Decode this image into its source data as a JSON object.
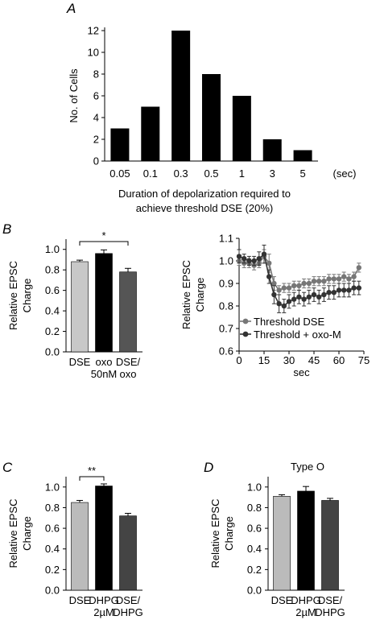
{
  "chart_data": [
    {
      "panel": "A",
      "type": "bar",
      "categories": [
        "0.05",
        "0.1",
        "0.3",
        "0.5",
        "1",
        "3",
        "5"
      ],
      "unit": "(sec)",
      "values": [
        3,
        5,
        12,
        8,
        6,
        2,
        1
      ],
      "ylabel": "No. of Cells",
      "xlabel_lines": [
        "Duration of depolarization required to",
        "achieve threshold DSE (20%)"
      ],
      "ylim": [
        0,
        12
      ],
      "yticks": [
        0,
        2,
        4,
        6,
        8,
        10,
        12
      ],
      "colors": [
        "#000000"
      ]
    },
    {
      "panel": "B",
      "type": "bar",
      "category_lines": [
        [
          "DSE"
        ],
        [
          "oxo",
          "50nM"
        ],
        [
          "DSE/",
          "oxo"
        ]
      ],
      "values": [
        0.88,
        0.96,
        0.78
      ],
      "errors": [
        0.015,
        0.035,
        0.035
      ],
      "colors": [
        "#c8c8c8",
        "#000000",
        "#555555"
      ],
      "ylabel_lines": [
        "Relative EPSC",
        "Charge"
      ],
      "ylim": [
        0,
        1.1
      ],
      "yticks": [
        "0.0",
        "0.2",
        "0.4",
        "0.6",
        "0.8",
        "1.0"
      ],
      "significance": {
        "text": "*",
        "between": [
          0,
          2
        ]
      }
    },
    {
      "panel": "B-right",
      "type": "line",
      "xlabel": "sec",
      "ylabel_lines": [
        "Relative EPSC",
        "Charge"
      ],
      "xlim": [
        0,
        75
      ],
      "ylim": [
        0.6,
        1.1
      ],
      "xticks": [
        0,
        15,
        30,
        45,
        60,
        75
      ],
      "yticks": [
        "0.6",
        "0.7",
        "0.8",
        "0.9",
        "1.0",
        "1.1"
      ],
      "legend_position": "bottom-right",
      "series": [
        {
          "name": "Threshold DSE",
          "color": "#777777",
          "x": [
            0,
            3,
            6,
            9,
            12,
            15,
            18,
            21,
            24,
            27,
            30,
            33,
            36,
            39,
            42,
            45,
            48,
            51,
            54,
            57,
            60,
            63,
            66,
            69,
            72
          ],
          "y": [
            1.0,
            0.99,
            0.99,
            0.98,
            0.99,
            1.02,
            0.99,
            0.9,
            0.87,
            0.88,
            0.88,
            0.89,
            0.89,
            0.9,
            0.9,
            0.91,
            0.91,
            0.91,
            0.92,
            0.92,
            0.92,
            0.93,
            0.92,
            0.93,
            0.97
          ],
          "err": [
            0.02,
            0.02,
            0.02,
            0.02,
            0.02,
            0.03,
            0.04,
            0.03,
            0.02,
            0.02,
            0.02,
            0.02,
            0.02,
            0.02,
            0.02,
            0.02,
            0.02,
            0.02,
            0.02,
            0.02,
            0.02,
            0.02,
            0.02,
            0.02,
            0.02
          ]
        },
        {
          "name": "Threshold + oxo-M",
          "color": "#333333",
          "x": [
            0,
            3,
            6,
            9,
            12,
            15,
            18,
            21,
            24,
            27,
            30,
            33,
            36,
            39,
            42,
            45,
            48,
            51,
            54,
            57,
            60,
            63,
            66,
            69,
            72
          ],
          "y": [
            1.02,
            1.01,
            1.0,
            1.0,
            1.01,
            1.03,
            0.93,
            0.85,
            0.81,
            0.8,
            0.82,
            0.83,
            0.84,
            0.83,
            0.84,
            0.85,
            0.84,
            0.85,
            0.86,
            0.86,
            0.87,
            0.87,
            0.87,
            0.88,
            0.88
          ],
          "err": [
            0.03,
            0.02,
            0.02,
            0.02,
            0.03,
            0.04,
            0.03,
            0.04,
            0.04,
            0.03,
            0.03,
            0.03,
            0.03,
            0.03,
            0.03,
            0.03,
            0.03,
            0.03,
            0.03,
            0.03,
            0.03,
            0.03,
            0.03,
            0.03,
            0.03
          ]
        }
      ]
    },
    {
      "panel": "C",
      "type": "bar",
      "category_lines": [
        [
          "DSE"
        ],
        [
          "DHPG",
          "2µM"
        ],
        [
          "DSE/",
          "DHPG"
        ]
      ],
      "values": [
        0.85,
        1.01,
        0.72
      ],
      "errors": [
        0.02,
        0.02,
        0.025
      ],
      "colors": [
        "#bbbbbb",
        "#000000",
        "#444444"
      ],
      "ylabel_lines": [
        "Relative EPSC",
        "Charge"
      ],
      "ylim": [
        0,
        1.1
      ],
      "yticks": [
        "0.0",
        "0.2",
        "0.4",
        "0.6",
        "0.8",
        "1.0"
      ],
      "significance": {
        "text": "**",
        "between": [
          0,
          1
        ]
      }
    },
    {
      "panel": "D",
      "type": "bar",
      "title": "Type O",
      "category_lines": [
        [
          "DSE"
        ],
        [
          "DHPG",
          "2µM"
        ],
        [
          "DSE/",
          "DHPG"
        ]
      ],
      "values": [
        0.91,
        0.96,
        0.87
      ],
      "errors": [
        0.015,
        0.045,
        0.02
      ],
      "colors": [
        "#bbbbbb",
        "#000000",
        "#444444"
      ],
      "ylabel_lines": [
        "Relative EPSC",
        "Charge"
      ],
      "ylim": [
        0,
        1.1
      ],
      "yticks": [
        "0.0",
        "0.2",
        "0.4",
        "0.6",
        "0.8",
        "1.0"
      ]
    }
  ]
}
